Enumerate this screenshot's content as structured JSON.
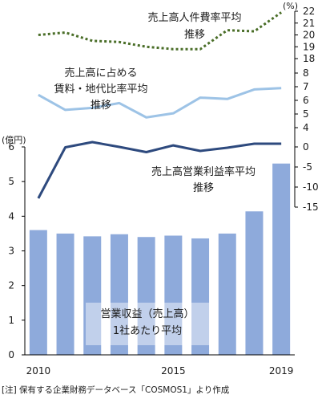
{
  "chart_data": {
    "type": "bar",
    "categories": [
      "2010",
      "2011",
      "2012",
      "2013",
      "2014",
      "2015",
      "2016",
      "2017",
      "2018",
      "2019"
    ],
    "x_tick_labels": [
      "2010",
      "",
      "",
      "",
      "",
      "2015",
      "",
      "",
      "",
      "2019"
    ],
    "bar_series": {
      "name": "営業収益（売上高）1社あたり平均",
      "values": [
        3.6,
        3.5,
        3.42,
        3.48,
        3.4,
        3.44,
        3.36,
        3.5,
        4.14,
        5.52
      ],
      "color": "#8eaadb"
    },
    "left_axis": {
      "unit": "(億円)",
      "ylim": [
        0,
        6
      ],
      "ticks": [
        "0",
        "1",
        "2",
        "3",
        "4",
        "5",
        "6"
      ]
    },
    "right_axis": {
      "unit": "(%)",
      "ticks": [
        "22",
        "21",
        "20",
        "19",
        "18",
        "8",
        "7",
        "6",
        "5",
        "4",
        "0",
        "-5",
        "-10",
        "-15"
      ]
    },
    "line_series": [
      {
        "name": "売上高人件費率平均推移",
        "values": [
          20.0,
          20.2,
          19.5,
          19.4,
          19.0,
          18.8,
          18.8,
          20.4,
          20.3,
          21.9
        ],
        "color": "#4a6e28",
        "style": "dotted"
      },
      {
        "name": "売上高に占める賃料・地代比率平均推移",
        "values": [
          6.4,
          5.3,
          5.45,
          5.8,
          4.75,
          5.05,
          6.2,
          6.1,
          6.8,
          6.9
        ],
        "color": "#9dc3e6",
        "style": "solid"
      },
      {
        "name": "売上高営業利益率平均推移",
        "values": [
          -12.8,
          -0.1,
          1.2,
          2.4,
          -1.3,
          2.7,
          -1.0,
          -0.2,
          0.8,
          0.8
        ],
        "color": "#2e4a7e",
        "style": "solid"
      }
    ],
    "labels": {
      "personnel_line1": "売上高人件費率平均",
      "personnel_line2": "推移",
      "rent_line1": "売上高に占める",
      "rent_line2": "賃料・地代比率平均",
      "rent_line3": "推移",
      "profit_line1": "売上高営業利益率平均",
      "profit_line2": "推移",
      "bar_line1": "営業収益（売上高）",
      "bar_line2": "1社あたり平均"
    },
    "note": "[注] 保有する企業財務データベース「COSMOS1」より作成"
  }
}
